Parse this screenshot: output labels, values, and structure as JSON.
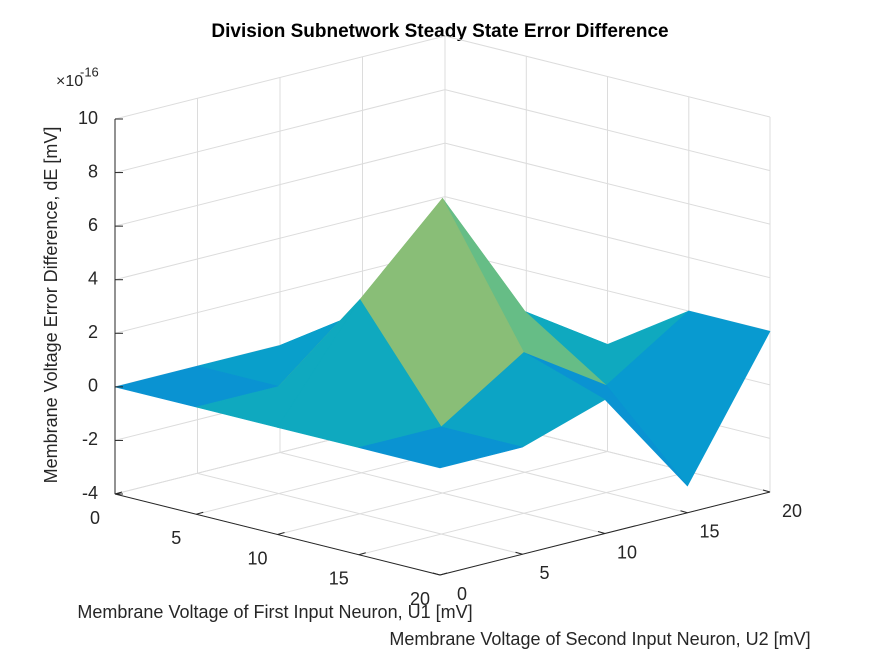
{
  "chart_data": {
    "type": "surface",
    "title": "Division Subnetwork Steady State Error Difference",
    "xlabel": "Membrane Voltage of First Input Neuron, U1 [mV]",
    "ylabel": "Membrane Voltage of Second Input Neuron, U2 [mV]",
    "zlabel": "Membrane Voltage Error Difference, dE [mV]",
    "z_multiplier": "×10",
    "z_exponent": "-16",
    "x": [
      0,
      5,
      10,
      15,
      20
    ],
    "y": [
      0,
      5,
      10,
      15,
      20
    ],
    "z": [
      [
        0,
        0,
        0,
        0,
        0
      ],
      [
        0,
        0,
        2,
        1,
        0
      ],
      [
        0,
        4,
        7,
        2,
        0
      ],
      [
        0,
        0,
        2,
        0,
        2
      ],
      [
        0,
        0,
        1,
        -3,
        2
      ]
    ],
    "xlim": [
      0,
      20
    ],
    "ylim": [
      0,
      20
    ],
    "zlim": [
      -4,
      10
    ],
    "xticks": [
      0,
      5,
      10,
      15,
      20
    ],
    "yticks": [
      0,
      5,
      10,
      15,
      20
    ],
    "zticks": [
      -4,
      -2,
      0,
      2,
      4,
      6,
      8,
      10
    ],
    "grid": true,
    "colormap": "parula"
  }
}
